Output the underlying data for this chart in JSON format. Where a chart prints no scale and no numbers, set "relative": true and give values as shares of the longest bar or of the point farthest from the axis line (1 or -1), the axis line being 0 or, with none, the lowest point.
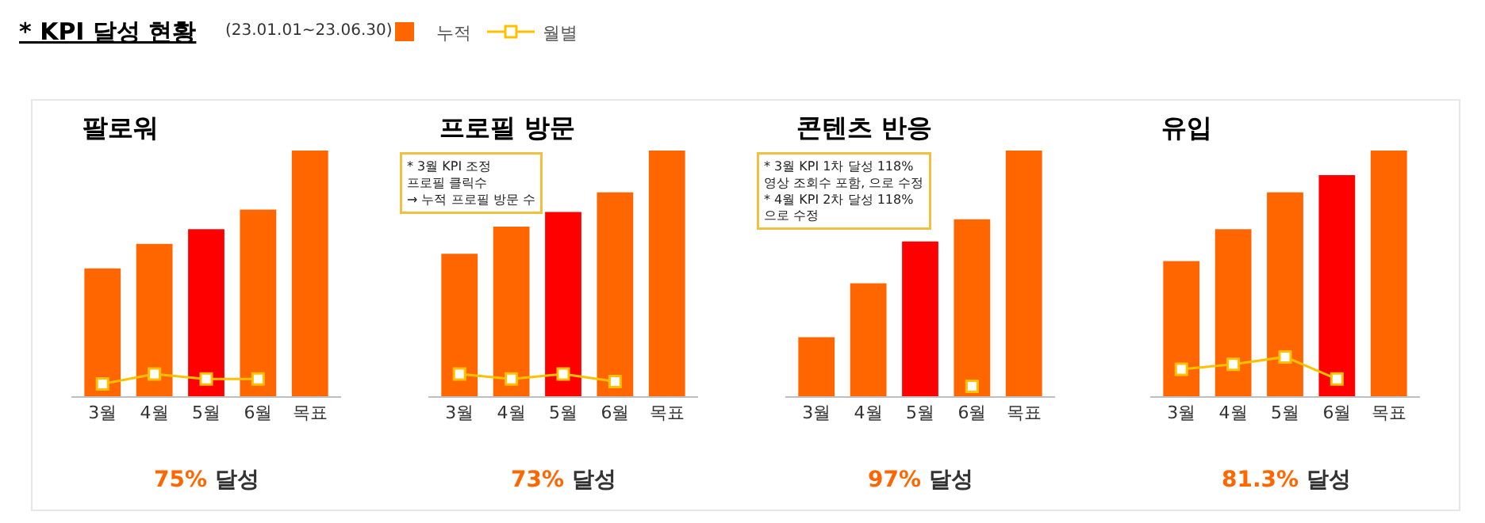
{
  "chart_data": [
    {
      "type": "other",
      "title": "* KPI 달성 현황",
      "subtitle": "(23.01.01~23.06.30)"
    },
    {
      "type": "bar",
      "title": "팔로워",
      "relative": true,
      "categories": [
        "3월",
        "4월",
        "5월",
        "6월",
        "목표"
      ],
      "legend": "top",
      "marker": "square",
      "annotations": [
        "75% 달성"
      ],
      "series": [
        {
          "name": "누적",
          "type": "bar",
          "color": "#ff6600",
          "colors": [
            "#ff6600",
            "#ff6600",
            "#ff0000",
            "#ff6600",
            "#ff6600"
          ],
          "values": [
            0.52,
            0.62,
            0.68,
            0.76,
            1
          ]
        },
        {
          "name": "월별",
          "type": "line",
          "color": "#ffc000",
          "values": [
            0.05,
            0.09,
            0.07,
            0.07,
            null
          ]
        }
      ]
    },
    {
      "type": "bar",
      "title": "프로필 방문",
      "relative": true,
      "categories": [
        "3월",
        "4월",
        "5월",
        "6월",
        "목표"
      ],
      "marker": "square",
      "annotations": [
        "* 3월 KPI 조정\n프로필 클릭수\n→ 누적 프로필 방문 수",
        "73% 달성"
      ],
      "series": [
        {
          "type": "bar",
          "color": "#ff6600",
          "colors": [
            "#ff6600",
            "#ff6600",
            "#ff0000",
            "#ff6600",
            "#ff6600"
          ],
          "values": [
            0.58,
            0.69,
            0.75,
            0.83,
            1
          ]
        },
        {
          "type": "line",
          "color": "#ffc000",
          "values": [
            0.09,
            0.07,
            0.09,
            0.06,
            null
          ]
        }
      ]
    },
    {
      "type": "bar",
      "title": "콘텐츠 반응",
      "relative": true,
      "categories": [
        "3월",
        "4월",
        "5월",
        "6월",
        "목표"
      ],
      "marker": "square",
      "annotations": [
        "* 3월 KPI 1차 달성 118%\n영상 조회수 포함, 으로 수정\n* 4월 KPI 2차 달성 118%\n으로 수정",
        "97% 달성"
      ],
      "series": [
        {
          "type": "bar",
          "color": "#ff6600",
          "colors": [
            "#ff6600",
            "#ff6600",
            "#ff0000",
            "#ff6600",
            "#ff6600"
          ],
          "values": [
            0.24,
            0.46,
            0.63,
            0.72,
            1
          ]
        },
        {
          "type": "line",
          "color": "#ffc000",
          "values": [
            null,
            null,
            null,
            0.04,
            null
          ]
        }
      ]
    },
    {
      "type": "bar",
      "title": "유입",
      "relative": true,
      "categories": [
        "3월",
        "4월",
        "5월",
        "6월",
        "목표"
      ],
      "marker": "square",
      "annotations": [
        "81.3% 달성"
      ],
      "series": [
        {
          "type": "bar",
          "color": "#ff6600",
          "colors": [
            "#ff6600",
            "#ff6600",
            "#ff6600",
            "#ff0000",
            "#ff6600"
          ],
          "values": [
            0.55,
            0.68,
            0.83,
            0.9,
            1
          ]
        },
        {
          "type": "line",
          "color": "#ffc000",
          "values": [
            0.11,
            0.13,
            0.16,
            0.07,
            null
          ]
        }
      ]
    }
  ]
}
